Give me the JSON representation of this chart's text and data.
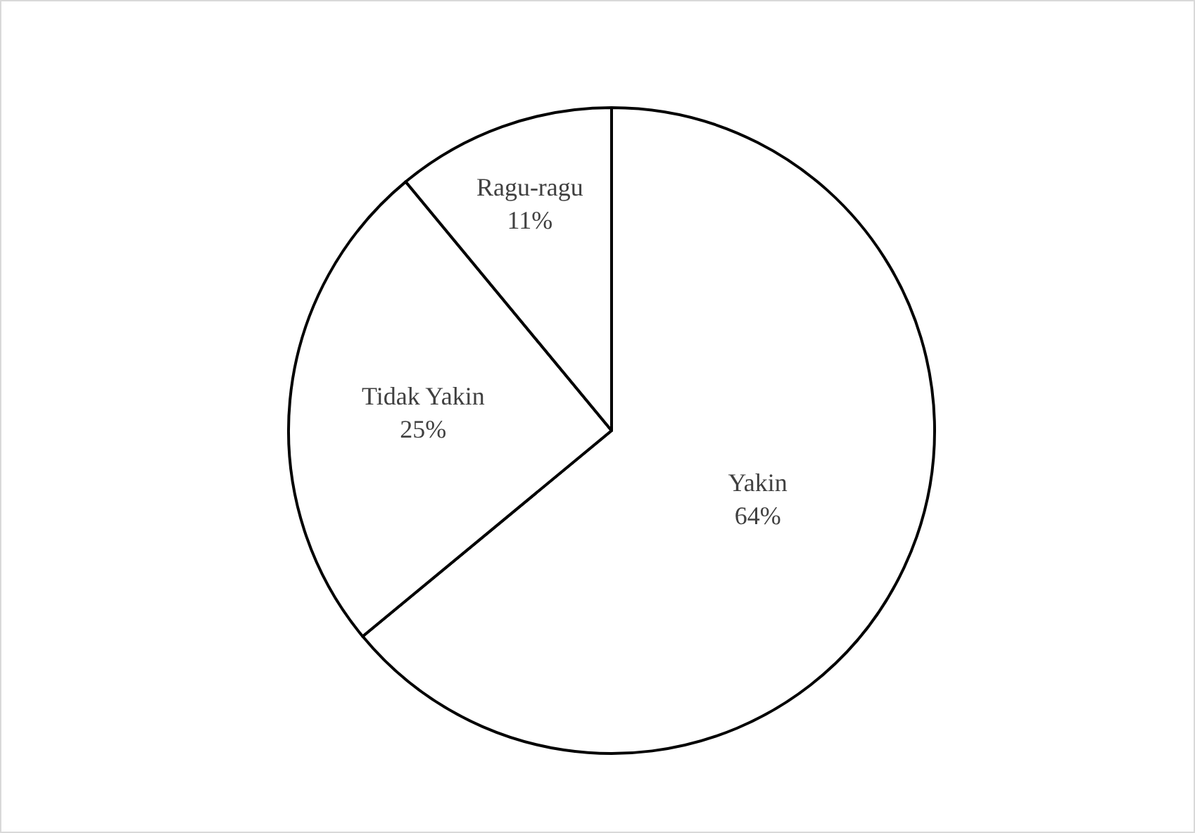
{
  "chart_data": {
    "type": "pie",
    "categories": [
      "Yakin",
      "Tidak Yakin",
      "Ragu-ragu"
    ],
    "values": [
      64,
      25,
      11
    ],
    "colors": [
      "#ffffff",
      "#ffffff",
      "#ffffff"
    ],
    "value_labels": [
      "64%",
      "25%",
      "11%"
    ],
    "legend": false
  }
}
